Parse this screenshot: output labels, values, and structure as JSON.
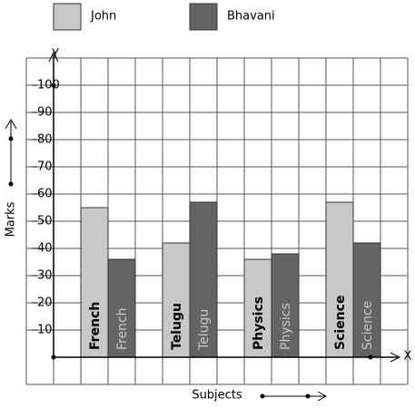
{
  "chart_data": {
    "type": "bar",
    "categories": [
      "French",
      "Telugu",
      "Physics",
      "Science"
    ],
    "series": [
      {
        "name": "John",
        "color": "#c8c8c8",
        "values": [
          55,
          42,
          36,
          57
        ]
      },
      {
        "name": "Bhavani",
        "color": "#646464",
        "values": [
          36,
          57,
          38,
          42
        ]
      }
    ],
    "ylim": [
      0,
      110
    ],
    "yticks": [
      10,
      20,
      30,
      40,
      50,
      60,
      70,
      80,
      90,
      100
    ],
    "y_label": "Marks",
    "x_label": "Subjects",
    "y_axis_letter": "Y",
    "x_axis_letter": "X",
    "grid": true
  }
}
